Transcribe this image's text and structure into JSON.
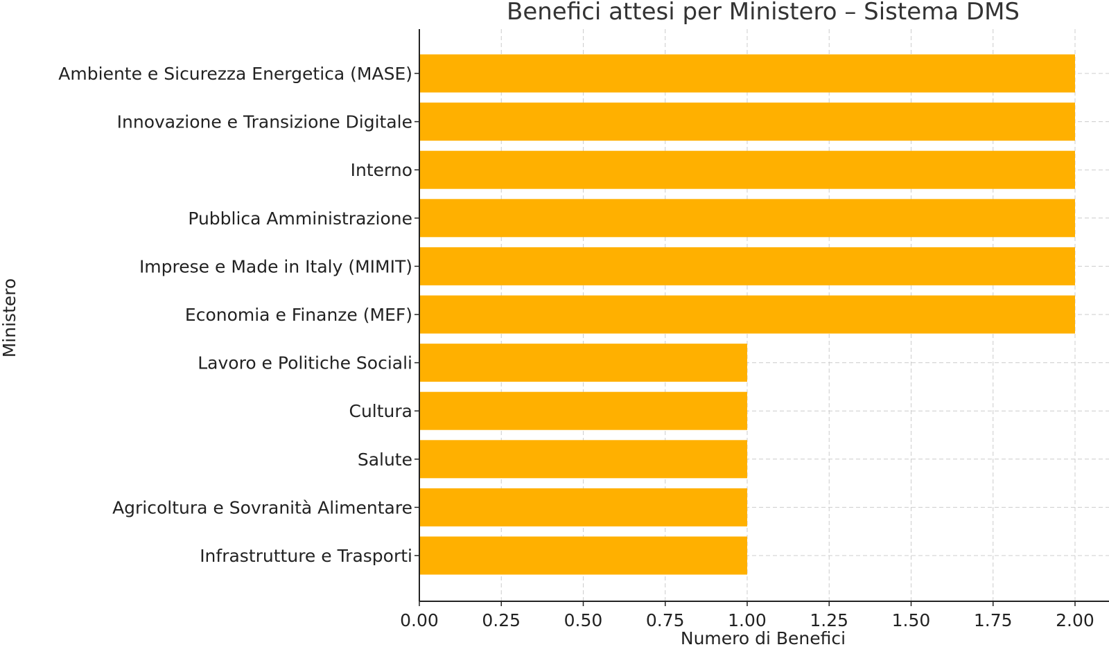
{
  "chart_data": {
    "type": "bar",
    "orientation": "horizontal",
    "title": "Benefici attesi per Ministero – Sistema DMS",
    "xlabel": "Numero di Benefici",
    "ylabel": "Ministero",
    "categories": [
      "Ambiente e Sicurezza Energetica (MASE)",
      "Innovazione e Transizione Digitale",
      "Interno",
      "Pubblica Amministrazione",
      "Imprese e Made in Italy (MIMIT)",
      "Economia e Finanze (MEF)",
      "Lavoro e Politiche Sociali",
      "Cultura",
      "Salute",
      "Agricoltura e Sovranità Alimentare",
      "Infrastrutture e Trasporti"
    ],
    "values": [
      2,
      2,
      2,
      2,
      2,
      2,
      1,
      1,
      1,
      1,
      1
    ],
    "xlim": [
      0,
      2
    ],
    "xticks": [
      "0.00",
      "0.25",
      "0.50",
      "0.75",
      "1.00",
      "1.25",
      "1.50",
      "1.75",
      "2.00"
    ],
    "grid": true,
    "bar_color": "#FFB000"
  }
}
